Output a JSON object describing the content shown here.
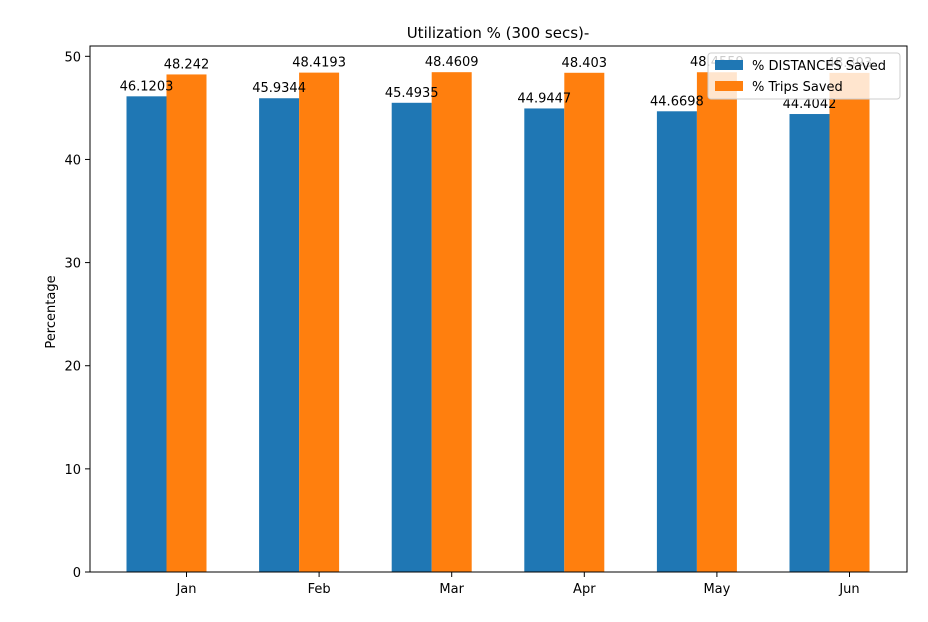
{
  "chart_data": {
    "type": "bar",
    "title": "Utilization % (300 secs)-",
    "xlabel": "",
    "ylabel": "Percentage",
    "categories": [
      "Jan",
      "Feb",
      "Mar",
      "Apr",
      "May",
      "Jun"
    ],
    "series": [
      {
        "name": "% DISTANCES Saved",
        "color": "#1f77b4",
        "values": [
          46.1203,
          45.9344,
          45.4935,
          44.9447,
          44.6698,
          44.4042
        ],
        "labels": [
          "46.1203",
          "45.9344",
          "45.4935",
          "44.9447",
          "44.6698",
          "44.4042"
        ]
      },
      {
        "name": "% Trips Saved",
        "color": "#ff7f0e",
        "values": [
          48.242,
          48.4193,
          48.4609,
          48.403,
          48.4559,
          48.393
        ],
        "labels": [
          "48.242",
          "48.4193",
          "48.4609",
          "48.403",
          "48.4559",
          "48.393"
        ]
      }
    ],
    "ylim": [
      0,
      51
    ],
    "yticks": [
      0,
      10,
      20,
      30,
      40,
      50
    ],
    "grid": false,
    "legend": "top-right"
  }
}
